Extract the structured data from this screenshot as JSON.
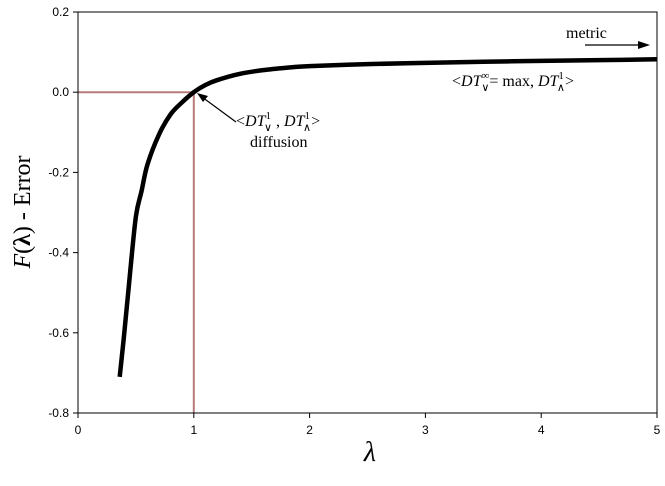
{
  "chart_data": {
    "type": "line",
    "xlabel": "λ",
    "ylabel_italic": "F",
    "ylabel_paren_open": "(",
    "ylabel_lambda": "λ",
    "ylabel_paren_close": ")",
    "ylabel_rest": " - Error",
    "xlim": [
      0,
      5
    ],
    "ylim": [
      -0.8,
      0.2
    ],
    "x_ticks": [
      "0",
      "1",
      "2",
      "3",
      "4",
      "5"
    ],
    "y_ticks": [
      "0.2",
      "0.0",
      "-0.2",
      "-0.4",
      "-0.6",
      "-0.8"
    ],
    "grid": false,
    "series": [
      {
        "color": "#000000",
        "x": [
          0.36,
          0.4,
          0.45,
          0.5,
          0.55,
          0.6,
          0.7,
          0.8,
          0.9,
          1.0,
          1.1,
          1.2,
          1.4,
          1.6,
          1.8,
          2.0,
          2.5,
          3.0,
          3.5,
          4.0,
          4.5,
          5.0
        ],
        "y": [
          -0.71,
          -0.6,
          -0.45,
          -0.31,
          -0.245,
          -0.18,
          -0.105,
          -0.055,
          -0.025,
          0.0,
          0.018,
          0.03,
          0.046,
          0.055,
          0.061,
          0.065,
          0.07,
          0.073,
          0.076,
          0.078,
          0.08,
          0.082
        ]
      }
    ],
    "reference_point": {
      "x": 1.0,
      "y": 0.0,
      "color": "#a05050"
    },
    "annotations": {
      "diffusion": {
        "open": "<",
        "dt1": "DT",
        "sub1": "∨",
        "sup1": "1",
        "sep": " , ",
        "dt2": "DT",
        "sub2": "∧",
        "sup2": "1",
        "close": ">",
        "label": "diffusion"
      },
      "metric": {
        "label": "metric",
        "open": "<",
        "dt1": "DT",
        "sub1": "∨",
        "sup1": "∞",
        "eq": "= max, ",
        "dt2": "DT",
        "sub2": "∧",
        "sup2": "1",
        "close": ">"
      }
    }
  }
}
